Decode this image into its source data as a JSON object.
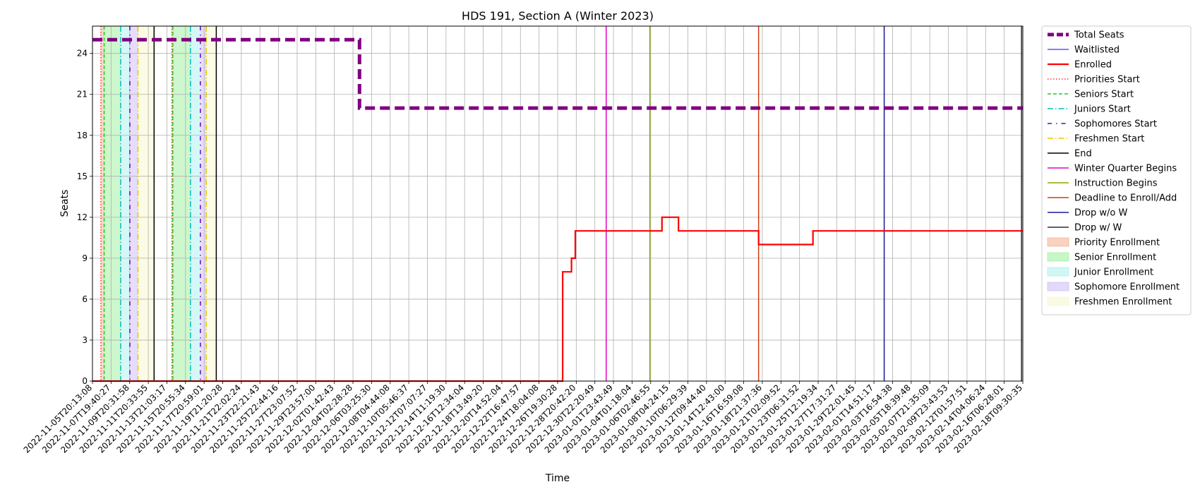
{
  "chart_data": {
    "type": "line",
    "title": "HDS 191, Section A (Winter 2023)",
    "xlabel": "Time",
    "ylabel": "Seats",
    "x_start": "2022-11-05T20:13:08",
    "x_end": "2023-02-19T09:30:35",
    "ylim": [
      0,
      26
    ],
    "y_ticks": [
      0,
      3,
      6,
      9,
      12,
      15,
      18,
      21,
      24
    ],
    "x_tick_labels": [
      "2022-11-05T20:13:08",
      "2022-11-07T19:40:27",
      "2022-11-09T20:31:58",
      "2022-11-11T20:33:55",
      "2022-11-13T21:03:17",
      "2022-11-15T20:55:34",
      "2022-11-17T20:59:01",
      "2022-11-19T21:20:28",
      "2022-11-21T22:02:24",
      "2022-11-23T22:21:43",
      "2022-11-25T22:44:16",
      "2022-11-27T23:07:52",
      "2022-11-29T23:57:00",
      "2022-12-02T01:42:43",
      "2022-12-04T02:28:28",
      "2022-12-06T03:25:30",
      "2022-12-08T04:44:08",
      "2022-12-10T05:46:37",
      "2022-12-12T07:07:27",
      "2022-12-14T11:19:30",
      "2022-12-16T12:34:04",
      "2022-12-18T13:49:20",
      "2022-12-20T14:52:04",
      "2022-12-22T16:47:57",
      "2022-12-24T18:04:08",
      "2022-12-26T19:30:28",
      "2022-12-28T20:42:20",
      "2022-12-30T22:20:49",
      "2023-01-01T23:43:49",
      "2023-01-04T01:18:04",
      "2023-01-06T02:46:55",
      "2023-01-08T04:24:15",
      "2023-01-10T06:29:39",
      "2023-01-12T09:44:40",
      "2023-01-14T12:43:00",
      "2023-01-16T16:59:08",
      "2023-01-18T21:37:36",
      "2023-01-21T02:09:52",
      "2023-01-23T06:31:52",
      "2023-01-25T12:19:34",
      "2023-01-27T17:31:27",
      "2023-01-29T22:01:45",
      "2023-02-01T14:51:17",
      "2023-02-03T16:54:38",
      "2023-02-05T18:39:48",
      "2023-02-07T21:35:09",
      "2023-02-09T23:43:53",
      "2023-02-12T01:57:51",
      "2023-02-14T04:06:24",
      "2023-02-16T06:28:01",
      "2023-02-18T09:30:35"
    ],
    "grid": true,
    "legend_position": "outside-right",
    "series": [
      {
        "name": "Total Seats",
        "color": "#800080",
        "style": "dashed-thick",
        "points": [
          [
            "2022-11-05T20:13:08",
            25
          ],
          [
            "2022-12-06T03:25:30",
            25
          ],
          [
            "2022-12-06T03:25:30",
            20
          ],
          [
            "2023-02-19T09:30:35",
            20
          ]
        ]
      },
      {
        "name": "Waitlisted",
        "color": "#0000ff",
        "style": "solid-thin",
        "points": [
          [
            "2022-11-05T20:13:08",
            0
          ],
          [
            "2023-02-19T09:30:35",
            0
          ]
        ]
      },
      {
        "name": "Enrolled",
        "color": "#ff0000",
        "style": "solid-thick",
        "points": [
          [
            "2022-11-05T20:13:08",
            0
          ],
          [
            "2022-12-29T04:30:00",
            0
          ],
          [
            "2022-12-29T04:30:00",
            8
          ],
          [
            "2022-12-30T04:30:00",
            8
          ],
          [
            "2022-12-30T04:30:00",
            9
          ],
          [
            "2022-12-30T15:00:00",
            9
          ],
          [
            "2022-12-30T15:00:00",
            11
          ],
          [
            "2023-01-09T11:00:00",
            11
          ],
          [
            "2023-01-09T11:00:00",
            12
          ],
          [
            "2023-01-11T08:00:00",
            12
          ],
          [
            "2023-01-11T08:00:00",
            11
          ],
          [
            "2023-01-20T10:00:00",
            11
          ],
          [
            "2023-01-20T10:00:00",
            10
          ],
          [
            "2023-01-26T14:00:00",
            10
          ],
          [
            "2023-01-26T14:00:00",
            11
          ],
          [
            "2023-02-19T09:30:35",
            11
          ]
        ]
      }
    ],
    "markers": [
      {
        "name": "Priorities Start",
        "color": "#ff3030",
        "style": "dotted",
        "times": [
          "2022-11-06T19:00:00",
          "2022-11-14T20:30:00"
        ]
      },
      {
        "name": "Seniors Start",
        "color": "#22cc22",
        "style": "dashed",
        "times": [
          "2022-11-07T04:00:00",
          "2022-11-14T23:00:00"
        ]
      },
      {
        "name": "Juniors Start",
        "color": "#00bfbf",
        "style": "dashdot",
        "times": [
          "2022-11-09T01:00:00",
          "2022-11-16T23:00:00"
        ]
      },
      {
        "name": "Sophomores Start",
        "color": "#6a00cc",
        "style": "loose-dashdot",
        "times": [
          "2022-11-10T02:00:00",
          "2022-11-18T02:00:00"
        ]
      },
      {
        "name": "Freshmen Start",
        "color": "#e6c700",
        "style": "dashdot",
        "times": [
          "2022-11-11T00:00:00",
          "2022-11-18T18:00:00"
        ]
      },
      {
        "name": "End",
        "color": "#000000",
        "style": "solid",
        "times": [
          "2022-11-12T20:00:00",
          "2022-11-19T21:20:28"
        ]
      },
      {
        "name": "Winter Quarter Begins",
        "color": "#e600c8",
        "style": "solid",
        "times": [
          "2023-01-03T03:00:00"
        ]
      },
      {
        "name": "Instruction Begins",
        "color": "#88aa00",
        "style": "solid",
        "times": [
          "2023-01-08T02:00:00"
        ]
      },
      {
        "name": "Deadline to Enroll/Add",
        "color": "#d43c10",
        "style": "solid",
        "times": [
          "2023-01-20T10:00:00"
        ]
      },
      {
        "name": "Drop w/o W",
        "color": "#1a1a99",
        "style": "solid",
        "times": [
          "2023-02-03T16:00:00"
        ]
      },
      {
        "name": "Drop w/ W",
        "color": "#2a2a40",
        "style": "solid",
        "times": [
          "2023-02-19T06:00:00"
        ]
      }
    ],
    "spans": [
      {
        "name": "Priority Enrollment",
        "color": "#f4a582",
        "ranges": [
          [
            "2022-11-06T19:00:00",
            "2022-11-07T04:00:00"
          ],
          [
            "2022-11-14T20:30:00",
            "2022-11-14T23:00:00"
          ]
        ]
      },
      {
        "name": "Senior Enrollment",
        "color": "#90ee90",
        "ranges": [
          [
            "2022-11-07T04:00:00",
            "2022-11-09T01:00:00"
          ],
          [
            "2022-11-14T23:00:00",
            "2022-11-16T23:00:00"
          ]
        ]
      },
      {
        "name": "Junior Enrollment",
        "color": "#9ff0ee",
        "ranges": [
          [
            "2022-11-09T01:00:00",
            "2022-11-10T02:00:00"
          ],
          [
            "2022-11-16T23:00:00",
            "2022-11-18T02:00:00"
          ]
        ]
      },
      {
        "name": "Sophomore Enrollment",
        "color": "#c7b3f5",
        "ranges": [
          [
            "2022-11-10T02:00:00",
            "2022-11-11T00:00:00"
          ],
          [
            "2022-11-18T02:00:00",
            "2022-11-18T18:00:00"
          ]
        ]
      },
      {
        "name": "Freshmen Enrollment",
        "color": "#f6f6c8",
        "ranges": [
          [
            "2022-11-11T00:00:00",
            "2022-11-12T20:00:00"
          ],
          [
            "2022-11-18T18:00:00",
            "2022-11-19T21:20:28"
          ]
        ]
      }
    ],
    "legend": [
      {
        "label": "Total Seats",
        "kind": "line",
        "color": "#800080",
        "style": "dashed-thick"
      },
      {
        "label": "Waitlisted",
        "kind": "line",
        "color": "#0000ff",
        "style": "solid-thin"
      },
      {
        "label": "Enrolled",
        "kind": "line",
        "color": "#ff0000",
        "style": "solid-thick"
      },
      {
        "label": "Priorities Start",
        "kind": "line",
        "color": "#ff3030",
        "style": "dotted"
      },
      {
        "label": "Seniors Start",
        "kind": "line",
        "color": "#22cc22",
        "style": "dashed"
      },
      {
        "label": "Juniors Start",
        "kind": "line",
        "color": "#00bfbf",
        "style": "dashdot"
      },
      {
        "label": "Sophomores Start",
        "kind": "line",
        "color": "#6a00cc",
        "style": "loose-dashdot"
      },
      {
        "label": "Freshmen Start",
        "kind": "line",
        "color": "#e6c700",
        "style": "dashdot"
      },
      {
        "label": "End",
        "kind": "line",
        "color": "#000000",
        "style": "solid"
      },
      {
        "label": "Winter Quarter Begins",
        "kind": "line",
        "color": "#e600c8",
        "style": "solid"
      },
      {
        "label": "Instruction Begins",
        "kind": "line",
        "color": "#88aa00",
        "style": "solid"
      },
      {
        "label": "Deadline to Enroll/Add",
        "kind": "line",
        "color": "#d43c10",
        "style": "solid"
      },
      {
        "label": "Drop w/o W",
        "kind": "line",
        "color": "#1a1a99",
        "style": "solid"
      },
      {
        "label": "Drop w/ W",
        "kind": "line",
        "color": "#2a2a40",
        "style": "solid"
      },
      {
        "label": "Priority Enrollment",
        "kind": "patch",
        "color": "#f4a582"
      },
      {
        "label": "Senior Enrollment",
        "kind": "patch",
        "color": "#90ee90"
      },
      {
        "label": "Junior Enrollment",
        "kind": "patch",
        "color": "#9ff0ee"
      },
      {
        "label": "Sophomore Enrollment",
        "kind": "patch",
        "color": "#c7b3f5"
      },
      {
        "label": "Freshmen Enrollment",
        "kind": "patch",
        "color": "#f6f6c8"
      }
    ]
  }
}
